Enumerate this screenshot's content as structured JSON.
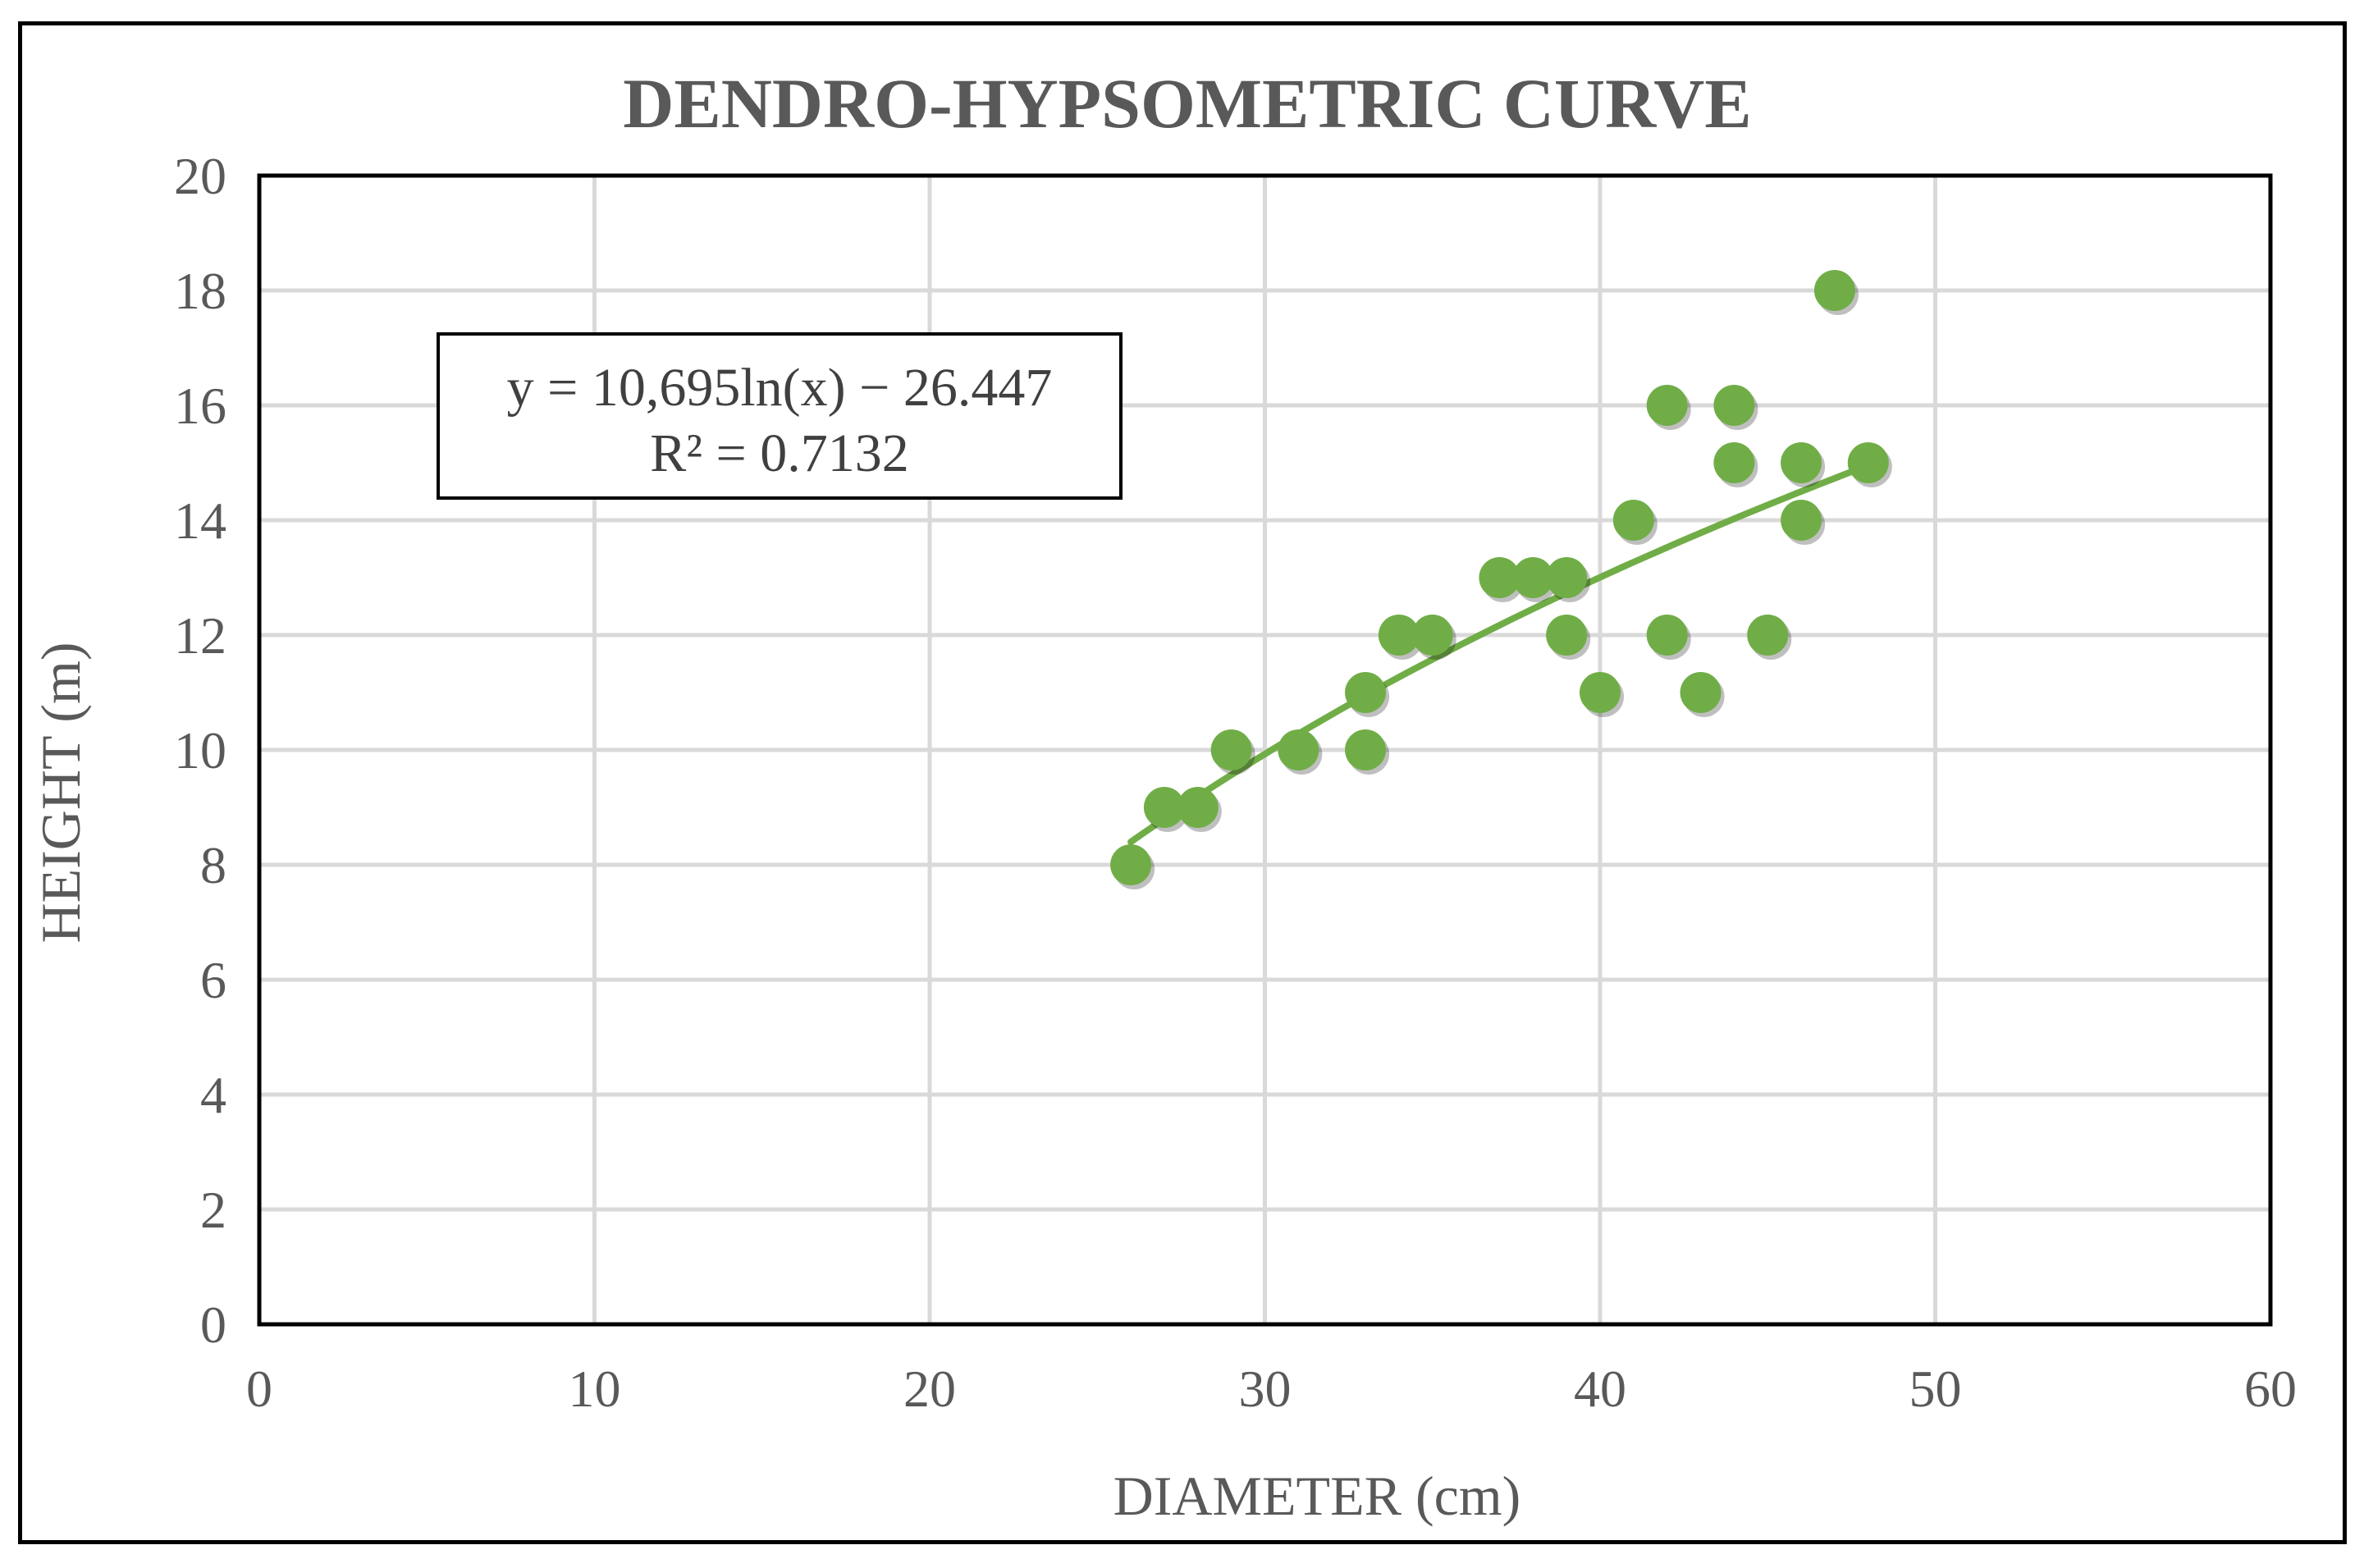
{
  "chart_data": {
    "type": "scatter",
    "title": "DENDRO-HYPSOMETRIC CURVE",
    "xlabel": "DIAMETER (cm)",
    "ylabel": "HEIGHT (m)",
    "xlim": [
      0,
      60
    ],
    "ylim": [
      0,
      20
    ],
    "xticks": [
      "0",
      "10",
      "20",
      "30",
      "40",
      "50",
      "60"
    ],
    "yticks": [
      "0",
      "2",
      "4",
      "6",
      "8",
      "10",
      "12",
      "14",
      "16",
      "18",
      "20"
    ],
    "grid": true,
    "marker_color": "#70AD47",
    "trendline_color": "#70AD47",
    "points": [
      {
        "x": 26,
        "y": 8
      },
      {
        "x": 27,
        "y": 9
      },
      {
        "x": 28,
        "y": 9
      },
      {
        "x": 29,
        "y": 10
      },
      {
        "x": 31,
        "y": 10
      },
      {
        "x": 33,
        "y": 10
      },
      {
        "x": 33,
        "y": 11
      },
      {
        "x": 34,
        "y": 12
      },
      {
        "x": 35,
        "y": 12
      },
      {
        "x": 37,
        "y": 13
      },
      {
        "x": 38,
        "y": 13
      },
      {
        "x": 39,
        "y": 13
      },
      {
        "x": 39,
        "y": 12
      },
      {
        "x": 40,
        "y": 11
      },
      {
        "x": 41,
        "y": 14
      },
      {
        "x": 42,
        "y": 16
      },
      {
        "x": 42,
        "y": 12
      },
      {
        "x": 43,
        "y": 11
      },
      {
        "x": 44,
        "y": 16
      },
      {
        "x": 44,
        "y": 15
      },
      {
        "x": 45,
        "y": 12
      },
      {
        "x": 46,
        "y": 15
      },
      {
        "x": 46,
        "y": 14
      },
      {
        "x": 47,
        "y": 18
      },
      {
        "x": 48,
        "y": 15
      }
    ],
    "trendline": {
      "type": "logarithmic",
      "a": 10.695,
      "b": -26.447,
      "x_range": [
        26,
        48
      ],
      "equation_label": "y = 10,695ln(x) − 26.447",
      "r2_label": "R² = 0.7132"
    }
  }
}
